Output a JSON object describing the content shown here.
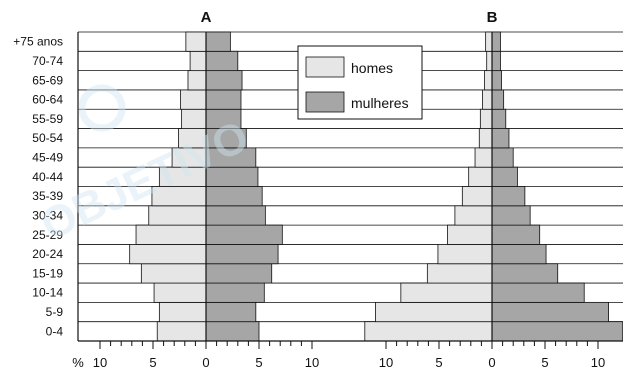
{
  "chart_data": [
    {
      "type": "bar",
      "title": "A",
      "orientation": "horizontal",
      "categories": [
        "0-4",
        "5-9",
        "10-14",
        "15-19",
        "20-24",
        "25-29",
        "30-34",
        "35-39",
        "40-44",
        "45-49",
        "50-54",
        "55-59",
        "60-64",
        "65-69",
        "70-74",
        "+75 anos"
      ],
      "series": [
        {
          "name": "homes",
          "color": "#e6e6e6",
          "values": [
            4.6,
            4.4,
            4.9,
            6.1,
            7.2,
            6.6,
            5.4,
            5.1,
            4.4,
            3.2,
            2.6,
            2.3,
            2.4,
            1.7,
            1.5,
            1.9
          ]
        },
        {
          "name": "mulheres",
          "color": "#a6a6a6",
          "values": [
            5.0,
            4.7,
            5.5,
            6.2,
            6.8,
            7.2,
            5.6,
            5.3,
            4.9,
            4.7,
            3.8,
            3.3,
            3.3,
            3.4,
            3.0,
            2.3
          ]
        }
      ],
      "x_tick_labels": [
        "10",
        "5",
        "0",
        "5",
        "10"
      ],
      "xlim": [
        -10,
        10
      ]
    },
    {
      "type": "bar",
      "title": "B",
      "orientation": "horizontal",
      "categories": [
        "0-4",
        "5-9",
        "10-14",
        "15-19",
        "20-24",
        "25-29",
        "30-34",
        "35-39",
        "40-44",
        "45-49",
        "50-54",
        "55-59",
        "60-64",
        "65-69",
        "70-74",
        "+75 anos"
      ],
      "series": [
        {
          "name": "homes",
          "color": "#e6e6e6",
          "values": [
            12.0,
            11.0,
            8.6,
            6.1,
            5.1,
            4.2,
            3.5,
            2.8,
            2.2,
            1.6,
            1.2,
            1.1,
            0.9,
            0.7,
            0.5,
            0.6
          ]
        },
        {
          "name": "mulheres",
          "color": "#a6a6a6",
          "values": [
            12.3,
            11.0,
            8.7,
            6.2,
            5.1,
            4.5,
            3.6,
            3.1,
            2.4,
            2.0,
            1.6,
            1.3,
            1.1,
            0.9,
            0.8,
            0.8
          ]
        }
      ],
      "x_tick_labels": [
        "10",
        "5",
        "0",
        "5",
        "10"
      ],
      "xlim": [
        -12.3,
        12.3
      ]
    }
  ],
  "axis_unit_label": "%",
  "legend": {
    "placement": "top-center",
    "items": [
      {
        "label": "homes",
        "color": "#e6e6e6"
      },
      {
        "label": "mulheres",
        "color": "#a6a6a6"
      }
    ]
  },
  "watermark": {
    "text": "OBJETIVO",
    "color": "#cfe6f3"
  }
}
